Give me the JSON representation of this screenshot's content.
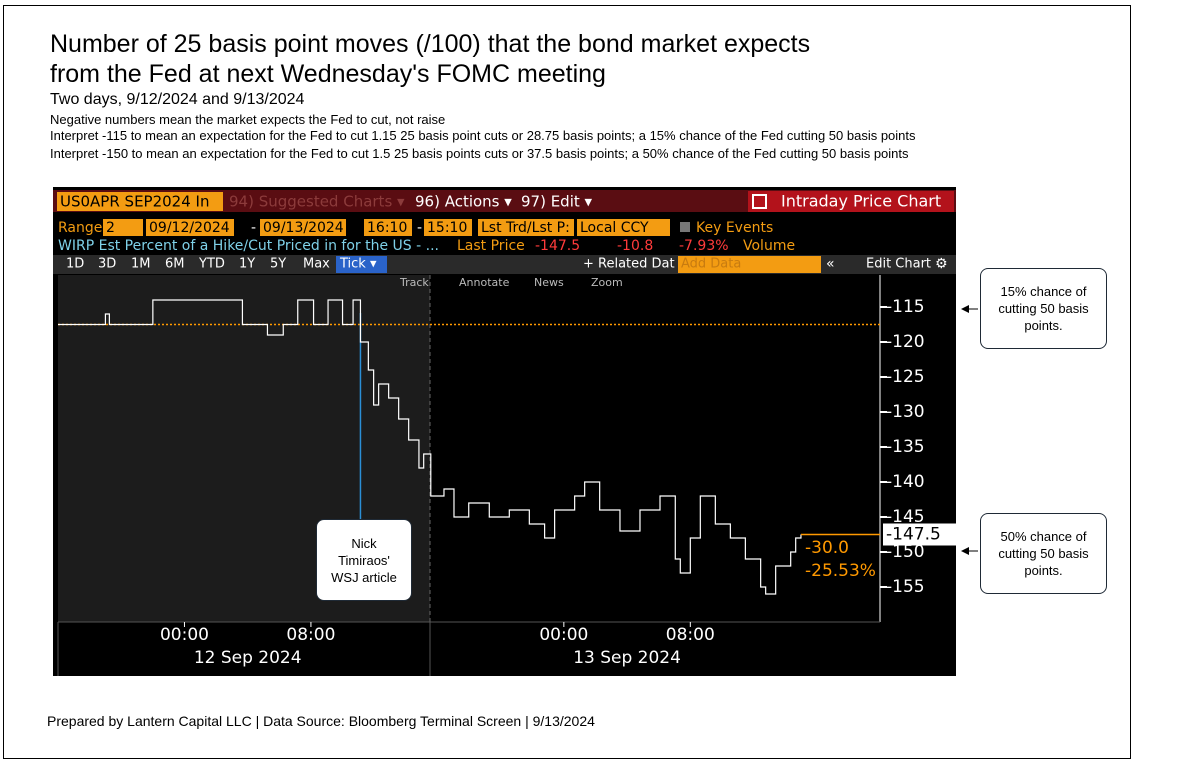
{
  "header": {
    "title_lines": [
      "Number of 25 basis point moves (/100) that the bond market expects",
      "from the Fed at next Wednesday's FOMC meeting"
    ],
    "subtitle": "Two days, 9/12/2024 and 9/13/2024",
    "notes": [
      "Negative numbers mean the market expects the Fed to cut, not raise",
      "Interpret -115 to mean an expectation for the Fed to cut 1.15 25 basis point cuts or 28.75 basis points; a 15% chance of the Fed cutting 50 basis points",
      "Interpret -150 to mean an expectation for the Fed to cut 1.5 25 basis points cuts or 37.5 basis points; a 50% chance of the Fed cutting 50 basis points"
    ]
  },
  "terminal": {
    "ticker": "US0APR SEP2024 In",
    "menu": [
      "94) Suggested Charts ▾",
      "96) Actions ▾",
      "97) Edit ▾"
    ],
    "panel_title": "Intraday Price Chart",
    "range_label": "Range",
    "range_fields": [
      "2",
      "09/12/2024",
      "-",
      "09/13/2024",
      "16:10",
      "-",
      "15:10",
      "Lst Trd/Lst P:",
      "Local CCY"
    ],
    "key_events": "Key Events",
    "last_price_label": "Last Price",
    "last_price": -147.5,
    "change": -10.8,
    "change_pct": "-7.93%",
    "volume_label": "Volume",
    "periods": [
      "1D",
      "3D",
      "1M",
      "6M",
      "YTD",
      "1Y",
      "5Y",
      "Max"
    ],
    "period_selected": "Tick ▾",
    "related": "+ Related Dat",
    "add_data": "Add Data",
    "collapse": "«",
    "edit_chart": "Edit Chart",
    "settings": "⚙",
    "tools": [
      "Track",
      "Annotate",
      "News",
      "Zoom"
    ]
  },
  "chart_data": {
    "type": "line",
    "x": [
      "2024-09-11T16:00",
      "2024-09-11T19:00",
      "2024-09-11T19:15",
      "2024-09-11T22:00",
      "2024-09-12T03:40",
      "2024-09-12T05:15",
      "2024-09-12T06:15",
      "2024-09-12T07:10",
      "2024-09-12T08:10",
      "2024-09-12T09:05",
      "2024-09-12T10:00",
      "2024-09-12T10:40",
      "2024-09-12T11:08",
      "2024-09-12T11:38",
      "2024-09-12T11:58",
      "2024-09-12T12:17",
      "2024-09-12T12:55",
      "2024-09-12T13:33",
      "2024-09-12T14:11",
      "2024-09-12T14:50",
      "2024-09-12T15:08",
      "2024-09-12T15:35",
      "2024-09-12T16:25",
      "2024-09-12T17:03",
      "2024-09-12T17:59",
      "2024-09-12T19:17",
      "2024-09-12T20:33",
      "2024-09-12T21:49",
      "2024-09-12T22:47",
      "2024-09-12T23:25",
      "2024-09-13T00:41",
      "2024-09-13T01:19",
      "2024-09-13T02:16",
      "2024-09-13T03:33",
      "2024-09-13T04:49",
      "2024-09-13T06:05",
      "2024-09-13T07:03",
      "2024-09-13T07:22",
      "2024-09-13T08:00",
      "2024-09-13T08:38",
      "2024-09-13T09:35",
      "2024-09-13T10:32",
      "2024-09-13T11:29",
      "2024-09-13T12:27",
      "2024-09-13T12:46",
      "2024-09-13T13:24",
      "2024-09-13T14:21",
      "2024-09-13T14:40",
      "2024-09-13T15:00"
    ],
    "series": [
      {
        "name": "WIRP Est Percent of a Hike/Cut Priced in for the US - ...",
        "color": "#ffffff",
        "values": [
          -117.5,
          -116,
          -117.5,
          -114,
          -117.5,
          -119,
          -117.5,
          -114,
          -117.5,
          -114,
          -117.5,
          -114,
          -120,
          -124,
          -129,
          -126,
          -128,
          -131,
          -134,
          -138,
          -136,
          -142,
          -141,
          -145,
          -143,
          -145,
          -144,
          -146,
          -148,
          -144,
          -142,
          -140,
          -144,
          -147,
          -144,
          -142,
          -151,
          -153,
          -148,
          -142,
          -146,
          -148,
          -151,
          -155,
          -156,
          -152,
          -150,
          -148,
          -147.5
        ]
      }
    ],
    "xlim": [
      "2024-09-11T16:00",
      "2024-09-13T20:00"
    ],
    "xticks": [
      {
        "value": "2024-09-12T00:00",
        "label": "00:00"
      },
      {
        "value": "2024-09-12T08:00",
        "label": "08:00"
      },
      {
        "value": "2024-09-13T00:00",
        "label": "00:00"
      },
      {
        "value": "2024-09-13T08:00",
        "label": "08:00"
      }
    ],
    "date_labels": [
      {
        "value": "2024-09-12T04:00",
        "label": "12 Sep 2024"
      },
      {
        "value": "2024-09-13T04:00",
        "label": "13 Sep 2024"
      }
    ],
    "ylim": [
      -160,
      -110
    ],
    "yticks": [
      -115,
      -120,
      -125,
      -130,
      -135,
      -140,
      -145,
      -150,
      -155
    ],
    "ref_line": -117.5,
    "ref_color": "#ff9900",
    "event_x": "2024-09-12T11:08",
    "event_color": "#2b8fd6",
    "change_labels": [
      "-30.0",
      "-25.53%"
    ]
  },
  "callouts": [
    "15% chance of cutting 50 basis points.",
    "50% chance of cutting 50 basis points.",
    "Nick Timiraos' WSJ article"
  ],
  "footer": "Prepared by Lantern Capital LLC | Data Source: Bloomberg Terminal Screen | 9/13/2024"
}
